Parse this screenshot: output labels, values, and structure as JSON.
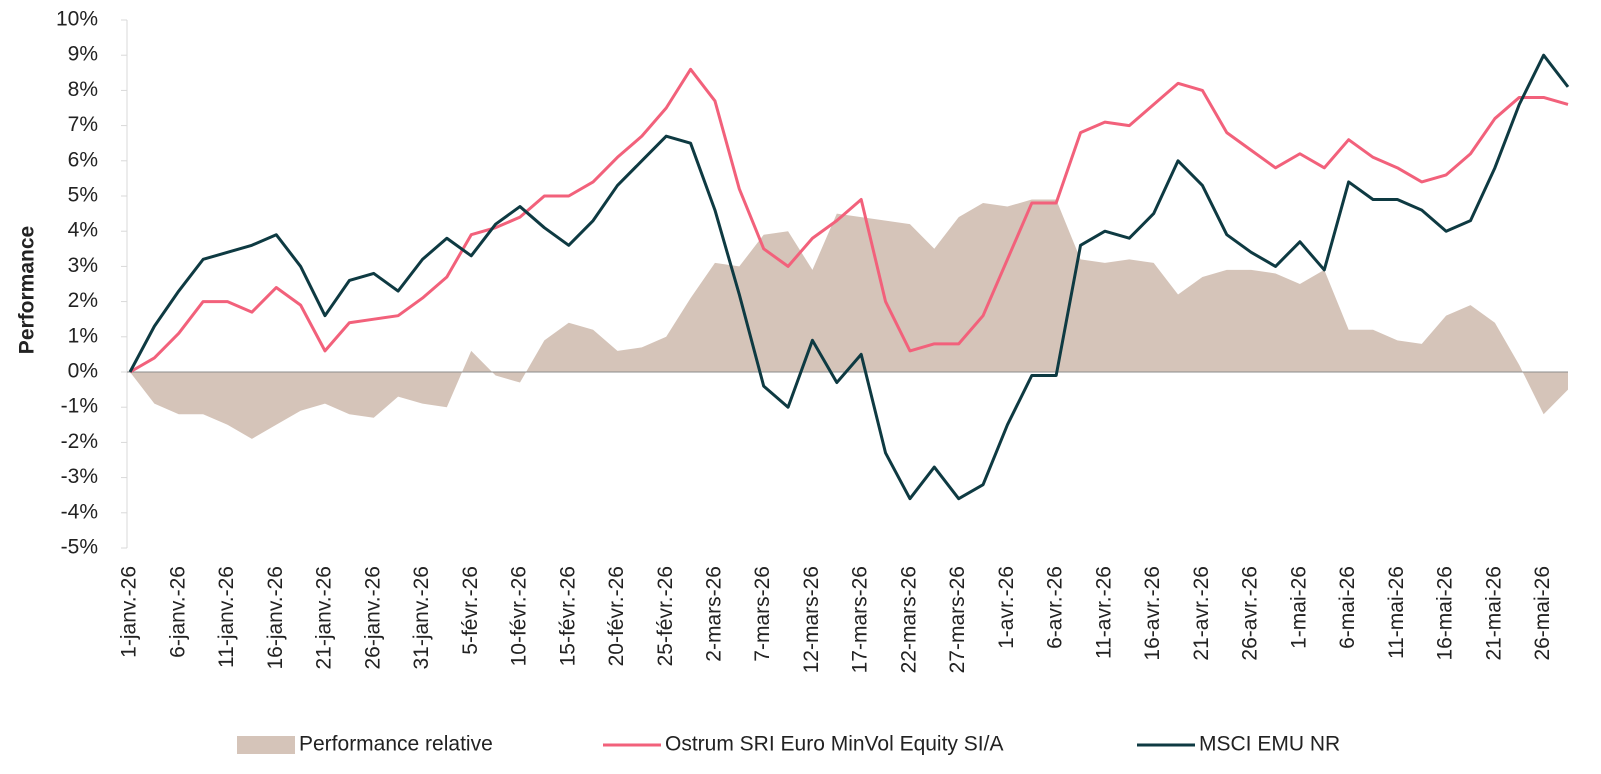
{
  "chart_data": {
    "type": "line",
    "y_label": "Performance",
    "categories": [
      "1-janv.-26",
      null,
      "6-janv.-26",
      null,
      "11-janv.-26",
      null,
      "16-janv.-26",
      null,
      "21-janv.-26",
      null,
      "26-janv.-26",
      null,
      "31-janv.-26",
      null,
      "5-févr.-26",
      null,
      "10-févr.-26",
      null,
      "15-févr.-26",
      null,
      "20-févr.-26",
      null,
      "25-févr.-26",
      null,
      "2-mars-26",
      null,
      "7-mars-26",
      null,
      "12-mars-26",
      null,
      "17-mars-26",
      null,
      "22-mars-26",
      null,
      "27-mars-26",
      null,
      "1-avr.-26",
      null,
      "6-avr.-26",
      null,
      "11-avr.-26",
      null,
      "16-avr.-26",
      null,
      "21-avr.-26",
      null,
      "26-avr.-26",
      null,
      "1-mai-26",
      null,
      "6-mai-26",
      null,
      "11-mai-26",
      null,
      "16-mai-26",
      null,
      "21-mai-26",
      null,
      "26-mai-26",
      null
    ],
    "series": [
      {
        "name": "Performance relative",
        "style": "area",
        "color": "#d5c4b9",
        "values": [
          0,
          -0.9,
          -1.2,
          -1.2,
          -1.5,
          -1.9,
          -1.5,
          -1.1,
          -0.9,
          -1.2,
          -1.3,
          -0.7,
          -0.9,
          -1.0,
          0.6,
          -0.1,
          -0.3,
          0.9,
          1.4,
          1.2,
          0.6,
          0.7,
          1.0,
          2.1,
          3.1,
          3.0,
          3.9,
          4.0,
          2.9,
          4.5,
          4.4,
          4.3,
          4.2,
          3.5,
          4.4,
          4.8,
          4.7,
          4.9,
          4.9,
          3.2,
          3.1,
          3.2,
          3.1,
          2.2,
          2.7,
          2.9,
          2.9,
          2.8,
          2.5,
          2.9,
          1.2,
          1.2,
          0.9,
          0.8,
          1.6,
          1.9,
          1.4,
          0.2,
          -1.2,
          -0.5
        ]
      },
      {
        "name": "Ostrum SRI Euro MinVol Equity SI/A",
        "style": "line",
        "color": "#f2617b",
        "values": [
          0,
          0.4,
          1.1,
          2.0,
          2.0,
          1.7,
          2.4,
          1.9,
          0.6,
          1.4,
          1.5,
          1.6,
          2.1,
          2.7,
          3.9,
          4.1,
          4.4,
          5.0,
          5.0,
          5.4,
          6.1,
          6.7,
          7.5,
          8.6,
          7.7,
          5.2,
          3.5,
          3.0,
          3.8,
          4.3,
          4.9,
          2.0,
          0.6,
          0.8,
          0.8,
          1.6,
          3.2,
          4.8,
          4.8,
          6.8,
          7.1,
          7.0,
          7.6,
          8.2,
          8.0,
          6.8,
          6.3,
          5.8,
          6.2,
          5.8,
          6.6,
          6.1,
          5.8,
          5.4,
          5.6,
          6.2,
          7.2,
          7.8,
          7.8,
          7.6
        ]
      },
      {
        "name": "MSCI EMU NR",
        "style": "line",
        "color": "#0e3a42",
        "values": [
          0,
          1.3,
          2.3,
          3.2,
          3.4,
          3.6,
          3.9,
          3.0,
          1.6,
          2.6,
          2.8,
          2.3,
          3.2,
          3.8,
          3.3,
          4.2,
          4.7,
          4.1,
          3.6,
          4.3,
          5.3,
          6.0,
          6.7,
          6.5,
          4.6,
          2.2,
          -0.4,
          -1.0,
          0.9,
          -0.3,
          0.5,
          -2.3,
          -3.6,
          -2.7,
          -3.6,
          -3.2,
          -1.5,
          -0.1,
          -0.1,
          3.6,
          4.0,
          3.8,
          4.5,
          6.0,
          5.3,
          3.9,
          3.4,
          3.0,
          3.7,
          2.9,
          5.4,
          4.9,
          4.9,
          4.6,
          4.0,
          4.3,
          5.8,
          7.6,
          9.0,
          8.1
        ]
      }
    ],
    "ylim": [
      -5,
      10
    ],
    "yticks": [
      {
        "value": -5,
        "label": "-5%"
      },
      {
        "value": -4,
        "label": "-4%"
      },
      {
        "value": -3,
        "label": "-3%"
      },
      {
        "value": -2,
        "label": "-2%"
      },
      {
        "value": -1,
        "label": "-1%"
      },
      {
        "value": 0,
        "label": "0%"
      },
      {
        "value": 1,
        "label": "1%"
      },
      {
        "value": 2,
        "label": "2%"
      },
      {
        "value": 3,
        "label": "3%"
      },
      {
        "value": 4,
        "label": "4%"
      },
      {
        "value": 5,
        "label": "5%"
      },
      {
        "value": 6,
        "label": "6%"
      },
      {
        "value": 7,
        "label": "7%"
      },
      {
        "value": 8,
        "label": "8%"
      },
      {
        "value": 9,
        "label": "9%"
      },
      {
        "value": 10,
        "label": "10%"
      }
    ],
    "legend": "bottom"
  }
}
